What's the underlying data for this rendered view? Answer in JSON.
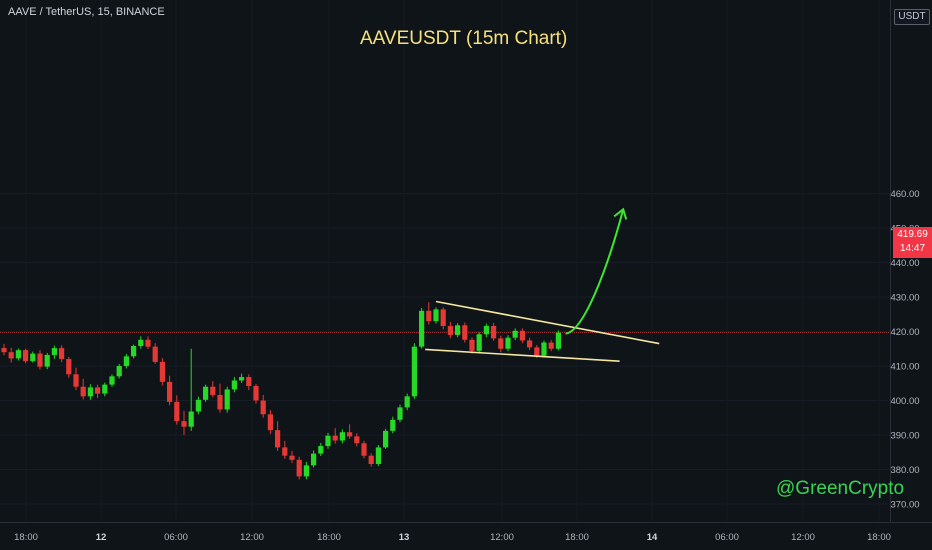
{
  "symbol_label": "AAVE / TetherUS, 15, BINANCE",
  "chart_title": "AAVEUSDT (15m Chart)",
  "watermark": "@GreenCrypto",
  "currency_button": "USDT",
  "last_price_label": {
    "price": "419.69",
    "countdown": "14:47"
  },
  "colors": {
    "background": "#0f1419",
    "up": "#26d926",
    "down": "#e53935",
    "trendline": "#f2e6a0",
    "projection_arrow": "#3de82e",
    "price_line": "#b23a3a",
    "axis_text": "#b2b5be",
    "title": "#f5e17a",
    "watermark": "#39d353"
  },
  "chart_data": {
    "type": "candlestick",
    "title": "AAVEUSDT (15m Chart)",
    "y_axis": {
      "position": "right",
      "ticks": [
        370,
        380,
        390,
        400,
        410,
        420,
        430,
        440,
        450,
        460
      ],
      "min": 369,
      "max": 461
    },
    "x_axis": {
      "tick_labels": [
        "18:00",
        "12",
        "06:00",
        "12:00",
        "18:00",
        "13",
        "12:00",
        "18:00",
        "14",
        "06:00",
        "12:00",
        "18:00"
      ]
    },
    "last_price": 419.69,
    "series": [
      {
        "name": "AAVEUSDT",
        "points": [
          [
            415.2,
            416.4,
            413.1,
            414.0
          ],
          [
            414.0,
            415.3,
            411.0,
            412.2
          ],
          [
            412.2,
            415.1,
            411.6,
            414.6
          ],
          [
            414.6,
            415.0,
            410.8,
            411.4
          ],
          [
            411.4,
            414.2,
            411.0,
            413.6
          ],
          [
            413.6,
            414.6,
            409.0,
            409.8
          ],
          [
            409.8,
            413.8,
            409.1,
            413.2
          ],
          [
            413.2,
            415.9,
            412.1,
            415.2
          ],
          [
            415.2,
            416.0,
            411.1,
            412.0
          ],
          [
            412.0,
            412.6,
            406.6,
            407.6
          ],
          [
            407.6,
            409.5,
            403.0,
            404.0
          ],
          [
            404.0,
            406.3,
            400.3,
            401.2
          ],
          [
            401.2,
            404.7,
            400.2,
            403.8
          ],
          [
            403.8,
            404.6,
            400.7,
            402.0
          ],
          [
            402.0,
            405.2,
            401.2,
            404.6
          ],
          [
            404.6,
            407.6,
            404.0,
            407.0
          ],
          [
            407.0,
            410.6,
            406.4,
            410.0
          ],
          [
            410.0,
            413.5,
            409.3,
            412.8
          ],
          [
            412.8,
            416.2,
            412.2,
            415.8
          ],
          [
            415.8,
            418.6,
            415.0,
            417.6
          ],
          [
            417.6,
            418.6,
            414.9,
            415.6
          ],
          [
            415.6,
            416.6,
            410.6,
            411.2
          ],
          [
            411.2,
            412.3,
            404.4,
            405.4
          ],
          [
            405.4,
            407.2,
            398.6,
            399.6
          ],
          [
            399.6,
            401.5,
            393.0,
            394.0
          ],
          [
            394.0,
            397.0,
            390.0,
            392.4
          ],
          [
            392.4,
            415.0,
            391.2,
            396.8
          ],
          [
            396.8,
            401.1,
            396.0,
            400.2
          ],
          [
            400.2,
            404.6,
            399.6,
            404.0
          ],
          [
            404.0,
            405.6,
            400.9,
            401.6
          ],
          [
            401.6,
            404.9,
            396.5,
            397.4
          ],
          [
            397.4,
            404.0,
            396.5,
            403.2
          ],
          [
            403.2,
            406.8,
            402.4,
            405.8
          ],
          [
            405.8,
            407.8,
            405.1,
            406.8
          ],
          [
            406.8,
            407.6,
            403.0,
            404.2
          ],
          [
            404.2,
            404.8,
            399.1,
            400.0
          ],
          [
            400.0,
            401.6,
            395.0,
            396.0
          ],
          [
            396.0,
            397.2,
            390.3,
            391.4
          ],
          [
            391.4,
            394.0,
            385.4,
            386.4
          ],
          [
            386.4,
            388.3,
            383.1,
            384.0
          ],
          [
            384.0,
            385.4,
            381.9,
            382.8
          ],
          [
            382.8,
            383.7,
            377.1,
            378.0
          ],
          [
            378.0,
            382.2,
            377.2,
            381.2
          ],
          [
            381.2,
            385.5,
            380.6,
            384.6
          ],
          [
            384.6,
            387.7,
            383.9,
            386.8
          ],
          [
            386.8,
            390.6,
            386.0,
            389.8
          ],
          [
            389.8,
            392.0,
            387.5,
            388.4
          ],
          [
            388.4,
            391.6,
            387.6,
            390.8
          ],
          [
            390.8,
            393.1,
            388.9,
            389.6
          ],
          [
            389.6,
            390.5,
            386.7,
            387.6
          ],
          [
            387.6,
            388.3,
            383.2,
            384.0
          ],
          [
            384.0,
            384.7,
            380.8,
            381.6
          ],
          [
            381.6,
            387.1,
            381.0,
            386.4
          ],
          [
            386.4,
            391.8,
            386.0,
            391.2
          ],
          [
            391.2,
            395.3,
            390.5,
            394.4
          ],
          [
            394.4,
            398.8,
            393.7,
            398.0
          ],
          [
            398.0,
            402.0,
            397.2,
            401.2
          ],
          [
            401.2,
            416.6,
            400.5,
            415.6
          ],
          [
            415.6,
            426.8,
            415.0,
            426.0
          ],
          [
            426.0,
            428.5,
            422.0,
            423.0
          ],
          [
            423.0,
            427.0,
            422.3,
            426.4
          ],
          [
            426.4,
            427.0,
            420.6,
            421.6
          ],
          [
            421.6,
            422.8,
            418.0,
            419.0
          ],
          [
            419.0,
            422.4,
            418.3,
            421.8
          ],
          [
            421.8,
            422.6,
            416.8,
            417.6
          ],
          [
            417.6,
            418.3,
            413.5,
            414.4
          ],
          [
            414.4,
            419.8,
            413.7,
            419.2
          ],
          [
            419.2,
            422.3,
            418.4,
            421.6
          ],
          [
            421.6,
            422.5,
            417.3,
            418.0
          ],
          [
            418.0,
            418.8,
            414.0,
            415.0
          ],
          [
            415.0,
            418.9,
            414.3,
            418.2
          ],
          [
            418.2,
            420.9,
            417.5,
            420.2
          ],
          [
            420.2,
            420.9,
            416.6,
            417.4
          ],
          [
            417.4,
            418.2,
            414.6,
            415.4
          ],
          [
            415.4,
            416.1,
            412.3,
            413.0
          ],
          [
            413.0,
            417.4,
            412.4,
            416.8
          ],
          [
            416.8,
            417.5,
            414.3,
            415.0
          ],
          [
            415.0,
            420.3,
            414.5,
            419.69
          ]
        ]
      }
    ],
    "annotations": {
      "upper_trendline": {
        "from": [
          60,
          428.7
        ],
        "to": [
          91,
          416.5
        ]
      },
      "lower_trendline": {
        "from": [
          58.5,
          414.8
        ],
        "to": [
          85.5,
          411.4
        ]
      },
      "projection_arrow": {
        "from": [
          78,
          419.4
        ],
        "to": [
          86,
          455.4
        ]
      }
    }
  }
}
